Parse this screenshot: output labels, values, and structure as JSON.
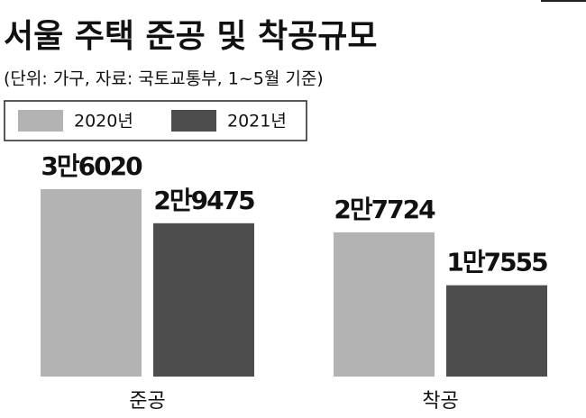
{
  "chart_data": {
    "type": "bar",
    "title": "서울 주택 준공 및 착공규모",
    "subtitle": "(단위: 가구, 자료: 국토교통부, 1~5월 기준)",
    "categories": [
      "준공",
      "착공"
    ],
    "series": [
      {
        "name": "2020년",
        "color": "#b3b3b3",
        "values": [
          36020,
          27724
        ],
        "value_labels": [
          "3만6020",
          "2만7724"
        ]
      },
      {
        "name": "2021년",
        "color": "#4d4d4d",
        "values": [
          29475,
          17555
        ],
        "value_labels": [
          "2만9475",
          "1만7555"
        ]
      }
    ]
  }
}
